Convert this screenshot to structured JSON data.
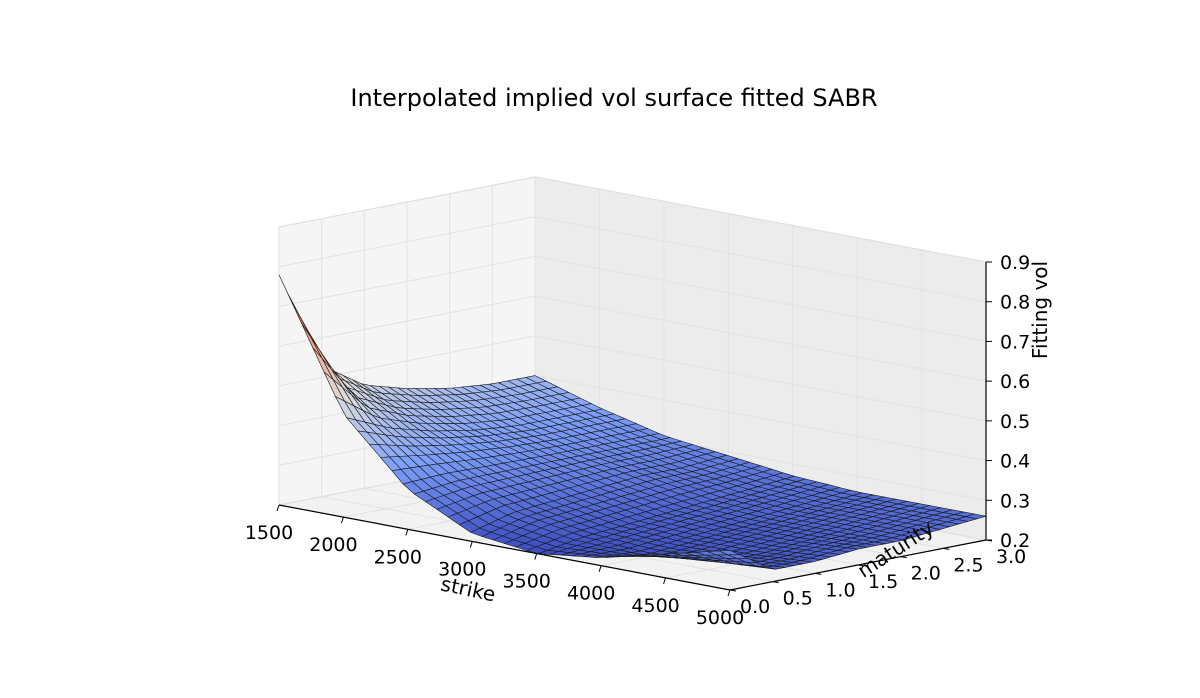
{
  "chart_data": {
    "type": "surface",
    "title": "Interpolated implied vol surface fitted SABR",
    "xlabel": "strike",
    "ylabel": "maturity",
    "zlabel": "Fitting vol",
    "x_ticks": [
      "1500",
      "2000",
      "2500",
      "3000",
      "3500",
      "4000",
      "4500",
      "5000"
    ],
    "y_ticks": [
      "0.0",
      "0.5",
      "1.0",
      "1.5",
      "2.0",
      "2.5",
      "3.0"
    ],
    "z_ticks": [
      "0.2",
      "0.3",
      "0.4",
      "0.5",
      "0.6",
      "0.7",
      "0.8",
      "0.9"
    ],
    "xlim": [
      1500,
      5000
    ],
    "ylim": [
      0.0,
      3.0
    ],
    "zlim": [
      0.2,
      0.9
    ],
    "colormap": "coolwarm",
    "grid": true,
    "strike": [
      1500,
      2000,
      2500,
      3000,
      3500,
      4000,
      4500,
      5000
    ],
    "maturity": [
      0.0,
      0.5,
      1.0,
      1.5,
      2.0,
      2.5,
      3.0
    ],
    "fitting_vol": [
      [
        0.78,
        0.46,
        0.3,
        0.22,
        0.2,
        0.22,
        0.26,
        0.3
      ],
      [
        0.53,
        0.41,
        0.31,
        0.25,
        0.22,
        0.21,
        0.22,
        0.23
      ],
      [
        0.46,
        0.38,
        0.31,
        0.26,
        0.23,
        0.22,
        0.22,
        0.23
      ],
      [
        0.43,
        0.36,
        0.31,
        0.27,
        0.24,
        0.23,
        0.23,
        0.24
      ],
      [
        0.41,
        0.35,
        0.31,
        0.28,
        0.25,
        0.24,
        0.24,
        0.24
      ],
      [
        0.4,
        0.35,
        0.31,
        0.28,
        0.26,
        0.25,
        0.25,
        0.25
      ],
      [
        0.4,
        0.35,
        0.31,
        0.29,
        0.27,
        0.26,
        0.26,
        0.26
      ]
    ]
  }
}
